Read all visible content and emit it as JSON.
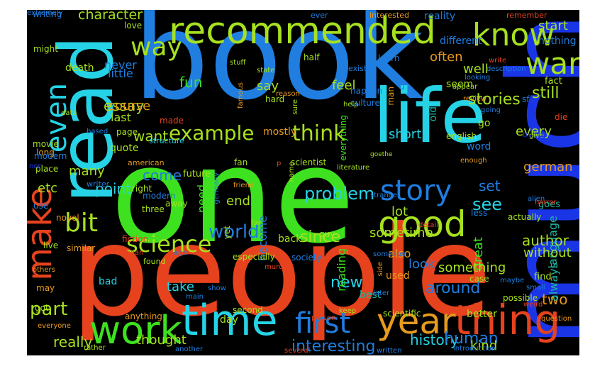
{
  "background": "#000000",
  "palette": {
    "blue": "#1f7ee0",
    "deep_blue": "#1a35e6",
    "cyan": "#26d3e6",
    "green": "#3ee11f",
    "lime": "#a7e11f",
    "red": "#e6421e",
    "orange": "#e69a1e",
    "teal": "#1fb6a0"
  },
  "words": [
    {
      "text": "book",
      "color": "#1f7ee0"
    },
    {
      "text": "one",
      "color": "#3ee11f"
    },
    {
      "text": "people",
      "color": "#e6421e"
    },
    {
      "text": "much",
      "color": "#1a35e6"
    },
    {
      "text": "read",
      "color": "#26d3e6"
    },
    {
      "text": "life",
      "color": "#26d3e6"
    },
    {
      "text": "recommended",
      "color": "#a7e11f"
    },
    {
      "text": "time",
      "color": "#26d3e6"
    },
    {
      "text": "thing",
      "color": "#e6421e"
    },
    {
      "text": "year",
      "color": "#e69a1e"
    },
    {
      "text": "make",
      "color": "#e6421e"
    },
    {
      "text": "work",
      "color": "#3ee11f"
    },
    {
      "text": "good",
      "color": "#a7e11f"
    },
    {
      "text": "story",
      "color": "#1f7ee0"
    },
    {
      "text": "first",
      "color": "#1f7ee0"
    },
    {
      "text": "know",
      "color": "#a7e11f"
    },
    {
      "text": "war",
      "color": "#a7e11f"
    },
    {
      "text": "even",
      "color": "#26d3e6"
    },
    {
      "text": "way",
      "color": "#a7e11f"
    },
    {
      "text": "bit",
      "color": "#a7e11f"
    },
    {
      "text": "science",
      "color": "#a7e11f"
    },
    {
      "text": "example",
      "color": "#a7e11f"
    },
    {
      "text": "think",
      "color": "#a7e11f"
    },
    {
      "text": "world",
      "color": "#1f7ee0"
    },
    {
      "text": "part",
      "color": "#a7e11f"
    },
    {
      "text": "stories",
      "color": "#a7e11f"
    },
    {
      "text": "still",
      "color": "#a7e11f"
    },
    {
      "text": "character",
      "color": "#a7e11f"
    },
    {
      "text": "essay",
      "color": "#a7e11f"
    },
    {
      "text": "see",
      "color": "#26d3e6"
    },
    {
      "text": "german",
      "color": "#e69a1e"
    },
    {
      "text": "around",
      "color": "#1f7ee0"
    },
    {
      "text": "new",
      "color": "#26d3e6"
    },
    {
      "text": "since",
      "color": "#a7e11f"
    },
    {
      "text": "problem",
      "color": "#26d3e6"
    },
    {
      "text": "interesting",
      "color": "#1f7ee0"
    },
    {
      "text": "history",
      "color": "#26d3e6"
    },
    {
      "text": "really",
      "color": "#a7e11f"
    },
    {
      "text": "author",
      "color": "#a7e11f"
    },
    {
      "text": "human",
      "color": "#1f7ee0"
    },
    {
      "text": "great",
      "color": "#3ee11f"
    },
    {
      "text": "two",
      "color": "#e69a1e"
    },
    {
      "text": "language",
      "color": "#1fb6a0"
    },
    {
      "text": "always",
      "color": "#1fb6a0"
    },
    {
      "text": "without",
      "color": "#a7e11f"
    },
    {
      "text": "thought",
      "color": "#a7e11f"
    },
    {
      "text": "kind",
      "color": "#a7e11f"
    },
    {
      "text": "take",
      "color": "#26d3e6"
    },
    {
      "text": "feel",
      "color": "#a7e11f"
    },
    {
      "text": "say",
      "color": "#a7e11f"
    },
    {
      "text": "fun",
      "color": "#3ee11f"
    },
    {
      "text": "course",
      "color": "#e69a1e"
    },
    {
      "text": "want",
      "color": "#a7e11f"
    },
    {
      "text": "come",
      "color": "#1f7ee0"
    },
    {
      "text": "point",
      "color": "#26d3e6"
    },
    {
      "text": "many",
      "color": "#a7e11f"
    },
    {
      "text": "well",
      "color": "#a7e11f"
    },
    {
      "text": "every",
      "color": "#a7e11f"
    },
    {
      "text": "start",
      "color": "#a7e11f"
    },
    {
      "text": "often",
      "color": "#e69a1e"
    },
    {
      "text": "sometime",
      "color": "#a7e11f"
    },
    {
      "text": "lot",
      "color": "#a7e11f"
    },
    {
      "text": "short",
      "color": "#26d3e6"
    },
    {
      "text": "end",
      "color": "#a7e11f"
    },
    {
      "text": "need",
      "color": "#3ee11f"
    },
    {
      "text": "etc",
      "color": "#a7e11f"
    },
    {
      "text": "last",
      "color": "#a7e11f"
    },
    {
      "text": "little",
      "color": "#1f7ee0"
    },
    {
      "text": "never",
      "color": "#1f7ee0"
    },
    {
      "text": "death",
      "color": "#a7e11f"
    },
    {
      "text": "something",
      "color": "#a7e11f"
    },
    {
      "text": "also",
      "color": "#e69a1e"
    },
    {
      "text": "look",
      "color": "#1f7ee0"
    },
    {
      "text": "reading",
      "color": "#3ee11f"
    },
    {
      "text": "go",
      "color": "#a7e11f"
    },
    {
      "text": "u",
      "color": "#1f7ee0"
    },
    {
      "text": "old",
      "color": "#1fb6a0"
    },
    {
      "text": "mostly",
      "color": "#e69a1e"
    },
    {
      "text": "become",
      "color": "#1f7ee0"
    },
    {
      "text": "back",
      "color": "#a7e11f"
    },
    {
      "text": "used",
      "color": "#e69a1e"
    },
    {
      "text": "best",
      "color": "#1fb6a0"
    },
    {
      "text": "find",
      "color": "#a7e11f"
    },
    {
      "text": "better",
      "color": "#a7e11f"
    },
    {
      "text": "goes",
      "color": "#1fb6a0"
    },
    {
      "text": "actually",
      "color": "#a7e11f"
    },
    {
      "text": "word",
      "color": "#1f7ee0"
    },
    {
      "text": "reality",
      "color": "#1f7ee0"
    },
    {
      "text": "different",
      "color": "#1f7ee0"
    },
    {
      "text": "nothing",
      "color": "#1f7ee0"
    },
    {
      "text": "seem",
      "color": "#a7e11f"
    },
    {
      "text": "fact",
      "color": "#a7e11f"
    },
    {
      "text": "die",
      "color": "#e6421e"
    },
    {
      "text": "idea",
      "color": "#1f7ee0"
    },
    {
      "text": "english",
      "color": "#a7e11f"
    },
    {
      "text": "quote",
      "color": "#a7e11f"
    },
    {
      "text": "modern",
      "color": "#1f7ee0"
    },
    {
      "text": "away",
      "color": "#a7e11f"
    },
    {
      "text": "three",
      "color": "#a7e11f"
    },
    {
      "text": "fiction",
      "color": "#e6421e"
    },
    {
      "text": "day",
      "color": "#a7e11f"
    },
    {
      "text": "bad",
      "color": "#26d3e6"
    },
    {
      "text": "may",
      "color": "#e69a1e"
    },
    {
      "text": "got",
      "color": "#a7e11f"
    },
    {
      "text": "second",
      "color": "#a7e11f"
    },
    {
      "text": "anything",
      "color": "#e69a1e"
    },
    {
      "text": "chapter",
      "color": "#1f7ee0"
    },
    {
      "text": "system",
      "color": "#1f7ee0"
    },
    {
      "text": "writing",
      "color": "#1f7ee0"
    },
    {
      "text": "love",
      "color": "#a7e11f"
    },
    {
      "text": "might",
      "color": "#a7e11f"
    },
    {
      "text": "half",
      "color": "#a7e11f"
    },
    {
      "text": "learn",
      "color": "#1f7ee0"
    },
    {
      "text": "man",
      "color": "#e69a1e"
    },
    {
      "text": "hard",
      "color": "#a7e11f"
    },
    {
      "text": "culture",
      "color": "#1f7ee0"
    },
    {
      "text": "happen",
      "color": "#1f7ee0"
    },
    {
      "text": "everything",
      "color": "#3ee11f"
    },
    {
      "text": "page",
      "color": "#a7e11f"
    },
    {
      "text": "made",
      "color": "#e6421e"
    },
    {
      "text": "long",
      "color": "#e69a1e"
    },
    {
      "text": "future",
      "color": "#a7e11f"
    },
    {
      "text": "fan",
      "color": "#a7e11f"
    },
    {
      "text": "scientist",
      "color": "#a7e11f"
    },
    {
      "text": "right",
      "color": "#a7e11f"
    },
    {
      "text": "modern",
      "color": "#1f7ee0"
    },
    {
      "text": "place",
      "color": "#a7e11f"
    },
    {
      "text": "use",
      "color": "#1f7ee0"
    },
    {
      "text": "novel",
      "color": "#e69a1e"
    },
    {
      "text": "live",
      "color": "#a7e11f"
    },
    {
      "text": "similar",
      "color": "#e69a1e"
    },
    {
      "text": "society",
      "color": "#1f7ee0"
    },
    {
      "text": "especially",
      "color": "#a7e11f"
    },
    {
      "text": "scientific",
      "color": "#a7e11f"
    },
    {
      "text": "case",
      "color": "#a7e11f"
    },
    {
      "text": "yet",
      "color": "#a7e11f"
    },
    {
      "text": "less",
      "color": "#1f7ee0"
    },
    {
      "text": "possible",
      "color": "#a7e11f"
    },
    {
      "text": "sf",
      "color": "#1f7ee0"
    },
    {
      "text": "guy",
      "color": "#a7e11f"
    },
    {
      "text": "someone",
      "color": "#1f7ee0"
    },
    {
      "text": "structure",
      "color": "#26d3e6"
    },
    {
      "text": "famous",
      "color": "#e69a1e"
    },
    {
      "text": "american",
      "color": "#e69a1e"
    },
    {
      "text": "stuff",
      "color": "#a7e11f"
    },
    {
      "text": "ever",
      "color": "#1f7ee0"
    },
    {
      "text": "interested",
      "color": "#e69a1e"
    },
    {
      "text": "remember",
      "color": "#e6421e"
    },
    {
      "text": "exist",
      "color": "#1f7ee0"
    },
    {
      "text": "state",
      "color": "#a7e11f"
    },
    {
      "text": "reason",
      "color": "#e69a1e"
    },
    {
      "text": "sure",
      "color": "#a7e11f"
    },
    {
      "text": "help",
      "color": "#a7e11f"
    },
    {
      "text": "data",
      "color": "#a7e11f"
    },
    {
      "text": "based",
      "color": "#1f7ee0"
    },
    {
      "text": "movie",
      "color": "#a7e11f"
    },
    {
      "text": "non",
      "color": "#1a35e6"
    },
    {
      "text": "goethe",
      "color": "#a7e11f"
    },
    {
      "text": "literature",
      "color": "#a7e11f"
    },
    {
      "text": "name",
      "color": "#a7e11f"
    },
    {
      "text": "germany",
      "color": "#1f7ee0"
    },
    {
      "text": "writer",
      "color": "#1f7ee0"
    },
    {
      "text": "friend",
      "color": "#e69a1e"
    },
    {
      "text": "strange",
      "color": "#1f7ee0"
    },
    {
      "text": "far",
      "color": "#a7e11f"
    },
    {
      "text": "age",
      "color": "#1f7ee0"
    },
    {
      "text": "mean",
      "color": "#e6421e"
    },
    {
      "text": "found",
      "color": "#a7e11f"
    },
    {
      "text": "murder",
      "color": "#e6421e"
    },
    {
      "text": "show",
      "color": "#1f7ee0"
    },
    {
      "text": "main",
      "color": "#1f7ee0"
    },
    {
      "text": "others",
      "color": "#e69a1e"
    },
    {
      "text": "keep",
      "color": "#a7e11f"
    },
    {
      "text": "person",
      "color": "#e6421e"
    },
    {
      "text": "everyone",
      "color": "#e69a1e"
    },
    {
      "text": "rather",
      "color": "#a7e11f"
    },
    {
      "text": "another",
      "color": "#1f7ee0"
    },
    {
      "text": "several",
      "color": "#e6421e"
    },
    {
      "text": "written",
      "color": "#1f7ee0"
    },
    {
      "text": "introduction",
      "color": "#1f7ee0"
    },
    {
      "text": "question",
      "color": "#e69a1e"
    },
    {
      "text": "later",
      "color": "#1f7ee0"
    },
    {
      "text": "side",
      "color": "#e69a1e"
    },
    {
      "text": "maybe",
      "color": "#1f7ee0"
    },
    {
      "text": "small",
      "color": "#1f7ee0"
    },
    {
      "text": "weird",
      "color": "#e6421e"
    },
    {
      "text": "alien",
      "color": "#1f7ee0"
    },
    {
      "text": "horror",
      "color": "#e6421e"
    },
    {
      "text": "enough",
      "color": "#e69a1e"
    },
    {
      "text": "give",
      "color": "#a7e11f"
    },
    {
      "text": "trying",
      "color": "#1a35e6"
    },
    {
      "text": "going",
      "color": "#1f7ee0"
    },
    {
      "text": "review",
      "color": "#e69a1e"
    },
    {
      "text": "appear",
      "color": "#a7e11f"
    },
    {
      "text": "looking",
      "color": "#1f7ee0"
    },
    {
      "text": "description",
      "color": "#1f7ee0"
    },
    {
      "text": "write",
      "color": "#e6421e"
    },
    {
      "text": "detail",
      "color": "#e6421e"
    },
    {
      "text": "set",
      "color": "#1f7ee0"
    },
    {
      "text": "p",
      "color": "#e6421e"
    },
    {
      "text": "extremely",
      "color": "#1f7ee0"
    }
  ]
}
